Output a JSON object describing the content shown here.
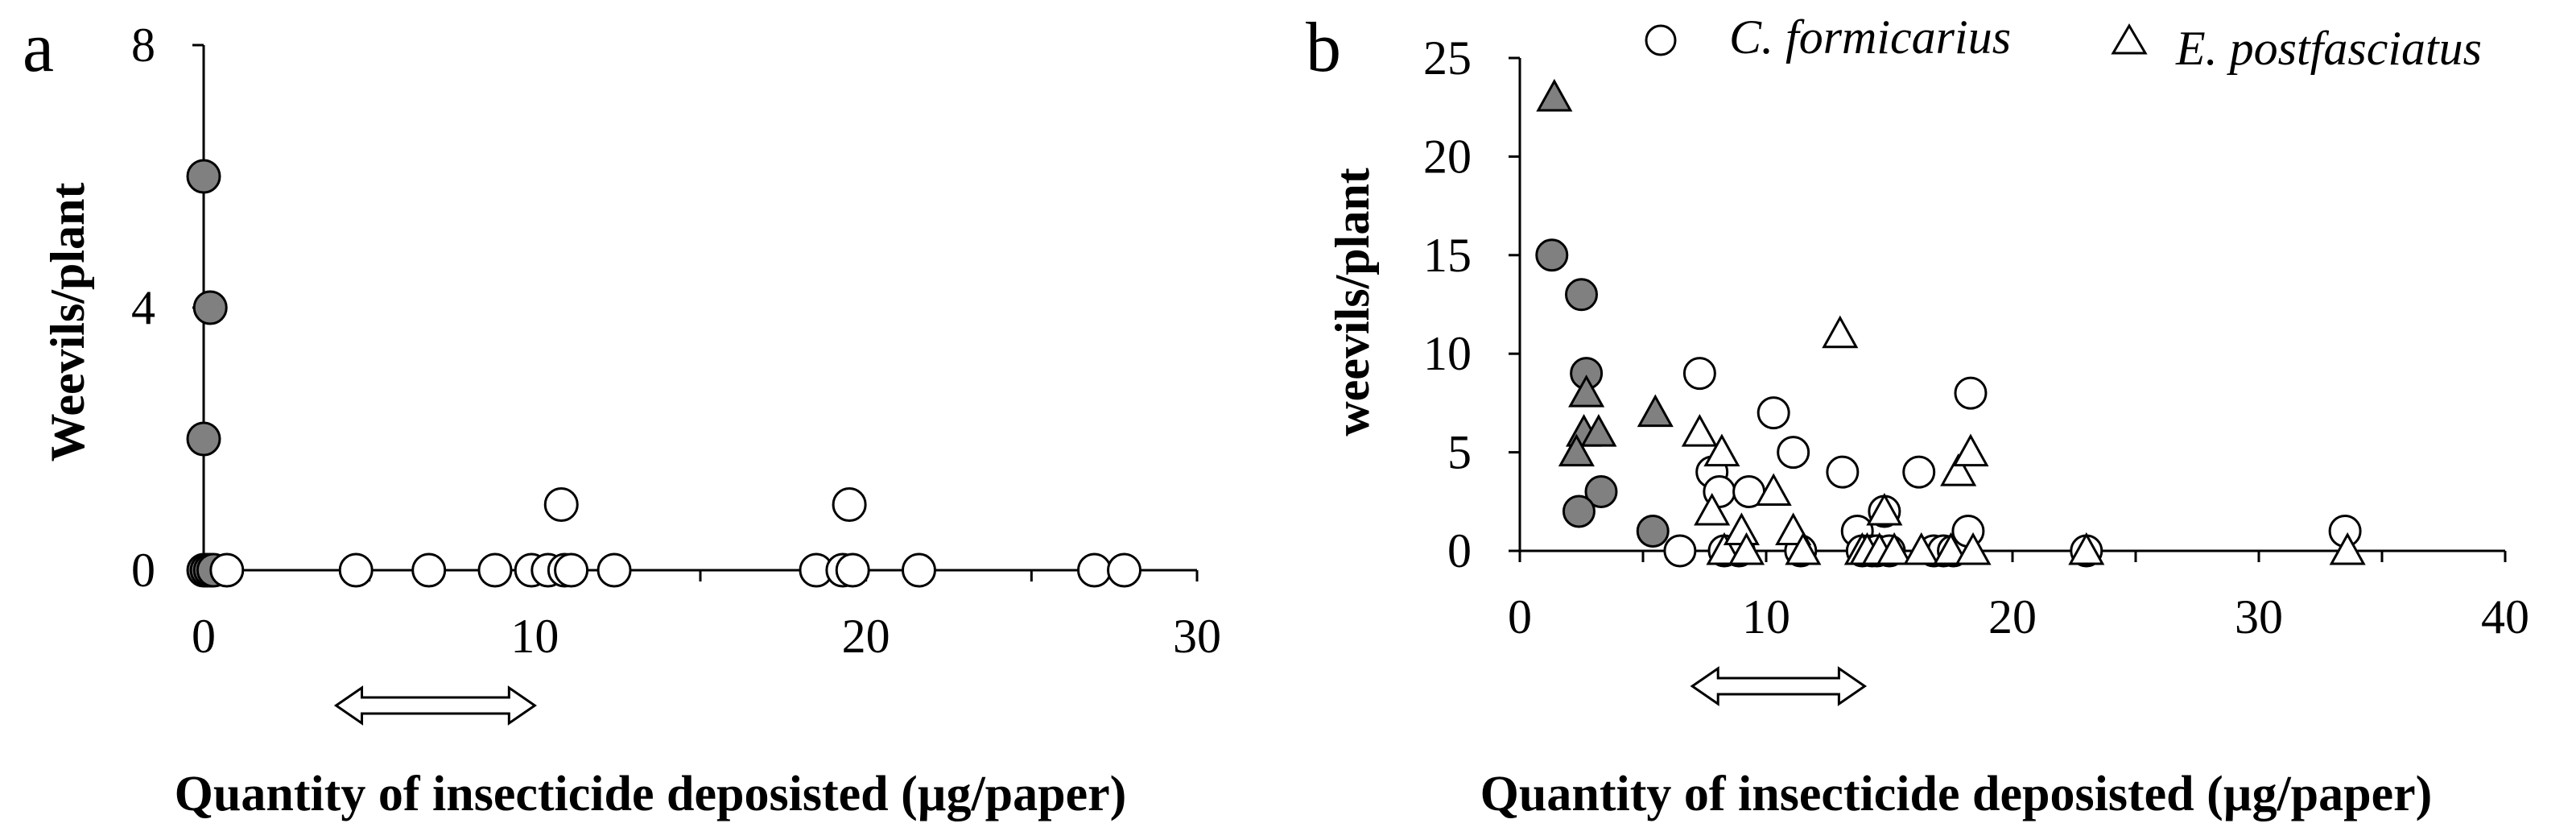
{
  "chart_data": [
    {
      "panel": "a",
      "type": "scatter",
      "xlabel": "Quantity of insecticide deposisted (µg/paper)",
      "ylabel": "Weevils/plant",
      "xlim": [
        0,
        30
      ],
      "ylim": [
        0,
        8
      ],
      "xticks": [
        0,
        10,
        20,
        30
      ],
      "yticks": [
        0,
        4,
        8
      ],
      "range_arrow": [
        4,
        10
      ],
      "series": [
        {
          "name": "filled",
          "marker": "circle",
          "fill": "#808080",
          "points": [
            [
              0,
              6
            ],
            [
              0.2,
              4
            ],
            [
              0,
              2
            ],
            [
              0,
              0
            ],
            [
              0.1,
              0
            ],
            [
              0.2,
              0
            ],
            [
              0.3,
              0
            ]
          ]
        },
        {
          "name": "open",
          "marker": "circle",
          "fill": "#ffffff",
          "points": [
            [
              0.7,
              0
            ],
            [
              4.6,
              0
            ],
            [
              6.8,
              0
            ],
            [
              8.8,
              0
            ],
            [
              9.9,
              0
            ],
            [
              10.4,
              0
            ],
            [
              10.8,
              1
            ],
            [
              10.9,
              0
            ],
            [
              11.1,
              0
            ],
            [
              12.4,
              0
            ],
            [
              18.5,
              0
            ],
            [
              19.3,
              0
            ],
            [
              19.5,
              1
            ],
            [
              19.6,
              0
            ],
            [
              21.6,
              0
            ],
            [
              26.9,
              0
            ],
            [
              27.8,
              0
            ]
          ]
        }
      ]
    },
    {
      "panel": "b",
      "type": "scatter",
      "xlabel": "Quantity of insecticide deposisted (µg/paper)",
      "ylabel": "weevils/plant",
      "xlim": [
        0,
        40
      ],
      "ylim": [
        0,
        25
      ],
      "xticks": [
        0,
        10,
        20,
        30,
        40
      ],
      "yticks": [
        0,
        5,
        10,
        15,
        20,
        25
      ],
      "range_arrow": [
        7,
        14
      ],
      "legend": [
        {
          "label": "C. formicarius",
          "marker": "circle"
        },
        {
          "label": "E. postfasciatus",
          "marker": "triangle"
        }
      ],
      "series": [
        {
          "name": "C. formicarius (filled)",
          "marker": "circle",
          "fill": "#808080",
          "points": [
            [
              1.3,
              15
            ],
            [
              2.5,
              13
            ],
            [
              2.7,
              9
            ],
            [
              3.3,
              3
            ],
            [
              2.4,
              2
            ],
            [
              5.4,
              1
            ]
          ]
        },
        {
          "name": "E. postfasciatus (filled)",
          "marker": "triangle",
          "fill": "#808080",
          "points": [
            [
              1.4,
              23
            ],
            [
              2.7,
              8
            ],
            [
              2.6,
              6
            ],
            [
              3.2,
              6
            ],
            [
              2.3,
              5
            ],
            [
              5.5,
              7
            ]
          ]
        },
        {
          "name": "C. formicarius",
          "marker": "circle",
          "fill": "#ffffff",
          "points": [
            [
              6.5,
              0
            ],
            [
              7.3,
              9
            ],
            [
              7.8,
              4
            ],
            [
              8.1,
              3
            ],
            [
              8.3,
              0
            ],
            [
              8.9,
              0
            ],
            [
              9.3,
              3
            ],
            [
              10.3,
              7
            ],
            [
              11.1,
              5
            ],
            [
              11.4,
              0
            ],
            [
              13.1,
              4
            ],
            [
              13.7,
              1
            ],
            [
              13.9,
              0
            ],
            [
              14.3,
              0
            ],
            [
              14.5,
              0
            ],
            [
              14.8,
              2
            ],
            [
              15.0,
              0
            ],
            [
              16.2,
              4
            ],
            [
              16.8,
              0
            ],
            [
              17.2,
              0
            ],
            [
              17.6,
              0
            ],
            [
              18.2,
              1
            ],
            [
              18.3,
              8
            ],
            [
              23.0,
              0
            ],
            [
              33.5,
              1
            ]
          ]
        },
        {
          "name": "E. postfasciatus",
          "marker": "triangle",
          "fill": "#ffffff",
          "points": [
            [
              7.3,
              6
            ],
            [
              7.8,
              2
            ],
            [
              8.2,
              5
            ],
            [
              8.3,
              0
            ],
            [
              9.0,
              1
            ],
            [
              9.2,
              0
            ],
            [
              10.3,
              3
            ],
            [
              11.1,
              1
            ],
            [
              11.5,
              0
            ],
            [
              13.0,
              11
            ],
            [
              13.9,
              0
            ],
            [
              14.1,
              0
            ],
            [
              14.6,
              0
            ],
            [
              14.8,
              2
            ],
            [
              15.2,
              0
            ],
            [
              16.3,
              0
            ],
            [
              17.5,
              0
            ],
            [
              17.8,
              4
            ],
            [
              18.3,
              5
            ],
            [
              18.4,
              0
            ],
            [
              23.0,
              0
            ],
            [
              33.6,
              0
            ]
          ]
        }
      ]
    }
  ],
  "panels": {
    "a": {
      "letter": "a"
    },
    "b": {
      "letter": "b"
    }
  }
}
